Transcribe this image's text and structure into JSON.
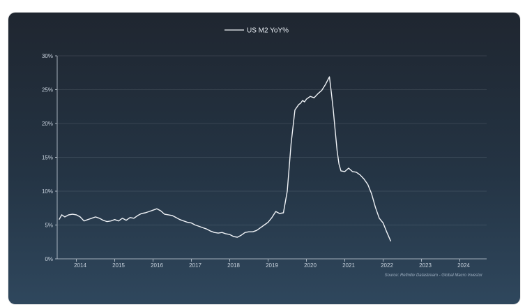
{
  "chart_data": {
    "type": "line",
    "title": "",
    "xlabel": "",
    "ylabel": "",
    "legend": {
      "position": "top-center",
      "entries": [
        "US M2 YoY%"
      ]
    },
    "source_note": "Source: Refinitiv Datastream - Global Macro Investor",
    "ylim": [
      0,
      30
    ],
    "xlim": [
      2013.5,
      2024.7
    ],
    "y_ticks": [
      "0%",
      "5%",
      "10%",
      "15%",
      "20%",
      "25%",
      "30%"
    ],
    "x_ticks": [
      "2014",
      "2015",
      "2016",
      "2017",
      "2018",
      "2019",
      "2020",
      "2021",
      "2022",
      "2023",
      "2024"
    ],
    "grid": true,
    "line_color": "#f0f3f7",
    "series": [
      {
        "name": "US M2 YoY%",
        "x": [
          2013.55,
          2013.62,
          2013.7,
          2013.8,
          2013.9,
          2014.0,
          2014.1,
          2014.2,
          2014.3,
          2014.4,
          2014.5,
          2014.6,
          2014.7,
          2014.8,
          2014.9,
          2015.0,
          2015.1,
          2015.2,
          2015.3,
          2015.4,
          2015.5,
          2015.6,
          2015.7,
          2015.8,
          2015.9,
          2016.0,
          2016.1,
          2016.2,
          2016.3,
          2016.4,
          2016.5,
          2016.6,
          2016.7,
          2016.8,
          2016.9,
          2017.0,
          2017.1,
          2017.2,
          2017.3,
          2017.4,
          2017.5,
          2017.6,
          2017.7,
          2017.8,
          2017.9,
          2018.0,
          2018.1,
          2018.2,
          2018.3,
          2018.4,
          2018.5,
          2018.6,
          2018.7,
          2018.8,
          2018.9,
          2019.0,
          2019.1,
          2019.2,
          2019.3,
          2019.4,
          2019.5,
          2019.6,
          2019.7,
          2019.8,
          2019.85,
          2019.9,
          2019.95,
          2020.0,
          2020.1,
          2020.2,
          2020.3,
          2020.4,
          2020.5,
          2020.6,
          2020.65,
          2020.7,
          2020.75,
          2020.8,
          2020.85,
          2020.9,
          2021.0,
          2021.1,
          2021.2,
          2021.3,
          2021.4,
          2021.5,
          2021.6,
          2021.7,
          2021.8,
          2021.9,
          2022.0,
          2022.1,
          2022.2
        ],
        "y": [
          5.8,
          6.5,
          6.2,
          6.5,
          6.6,
          6.5,
          6.2,
          5.6,
          5.8,
          6.0,
          6.2,
          6.0,
          5.7,
          5.5,
          5.6,
          5.8,
          5.6,
          6.0,
          5.7,
          6.1,
          6.0,
          6.4,
          6.7,
          6.8,
          7.0,
          7.2,
          7.4,
          7.1,
          6.6,
          6.5,
          6.4,
          6.1,
          5.8,
          5.6,
          5.4,
          5.3,
          5.0,
          4.8,
          4.6,
          4.4,
          4.1,
          3.9,
          3.8,
          3.9,
          3.7,
          3.6,
          3.3,
          3.2,
          3.5,
          3.9,
          4.0,
          4.0,
          4.2,
          4.6,
          5.0,
          5.4,
          6.1,
          7.0,
          6.7,
          6.8,
          10.0,
          17.0,
          22.0,
          22.8,
          23.0,
          23.4,
          23.2,
          23.6,
          24.0,
          23.8,
          24.4,
          24.9,
          25.8,
          26.9,
          24.5,
          22.0,
          19.0,
          16.0,
          14.0,
          13.0,
          12.9,
          13.4,
          12.9,
          12.8,
          12.4,
          11.8,
          11.0,
          9.6,
          7.6,
          6.0,
          5.3,
          3.9,
          2.6
        ]
      }
    ]
  }
}
